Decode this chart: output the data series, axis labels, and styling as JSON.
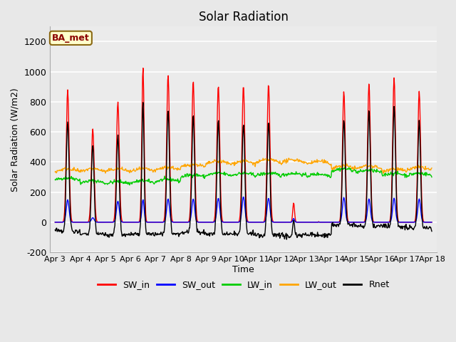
{
  "title": "Solar Radiation",
  "ylabel": "Solar Radiation (W/m2)",
  "xlabel": "Time",
  "ylim": [
    -200,
    1300
  ],
  "yticks": [
    -200,
    0,
    200,
    400,
    600,
    800,
    1000,
    1200
  ],
  "fig_bg": "#e8e8e8",
  "plot_bg": "#ebebeb",
  "grid_color": "#ffffff",
  "series_colors": {
    "SW_in": "#ff0000",
    "SW_out": "#0000ff",
    "LW_in": "#00cc00",
    "LW_out": "#ffa500",
    "Rnet": "#000000"
  },
  "legend_label": "BA_met",
  "legend_box_facecolor": "#ffffcc",
  "legend_box_edgecolor": "#8b6914",
  "num_days": 15,
  "day_labels": [
    "Apr 3",
    "Apr 4",
    "Apr 5",
    "Apr 6",
    "Apr 7",
    "Apr 8",
    "Apr 9",
    "Apr 10",
    "Apr 11",
    "Apr 12",
    "Apr 13",
    "Apr 14",
    "Apr 15",
    "Apr 16",
    "Apr 17",
    "Apr 18"
  ],
  "peaks_SWin": [
    880,
    620,
    800,
    1030,
    980,
    940,
    910,
    910,
    920,
    130,
    5,
    870,
    920,
    960,
    870
  ],
  "peaks_SWout": [
    150,
    30,
    140,
    150,
    155,
    155,
    160,
    170,
    160,
    25,
    1,
    165,
    155,
    160,
    155
  ],
  "peak_widths_SW": [
    0.055,
    0.055,
    0.055,
    0.045,
    0.055,
    0.055,
    0.055,
    0.055,
    0.055,
    0.035,
    0.01,
    0.055,
    0.055,
    0.055,
    0.055
  ],
  "lw_in_base": 300,
  "lw_out_base": 360,
  "lw_in_day_offsets": [
    -20,
    -40,
    -45,
    -40,
    -30,
    0,
    10,
    10,
    10,
    10,
    5,
    40,
    30,
    10,
    10
  ],
  "lw_out_day_offsets": [
    -25,
    -25,
    -25,
    -25,
    -15,
    5,
    25,
    25,
    35,
    35,
    25,
    -5,
    -5,
    -25,
    -15
  ]
}
